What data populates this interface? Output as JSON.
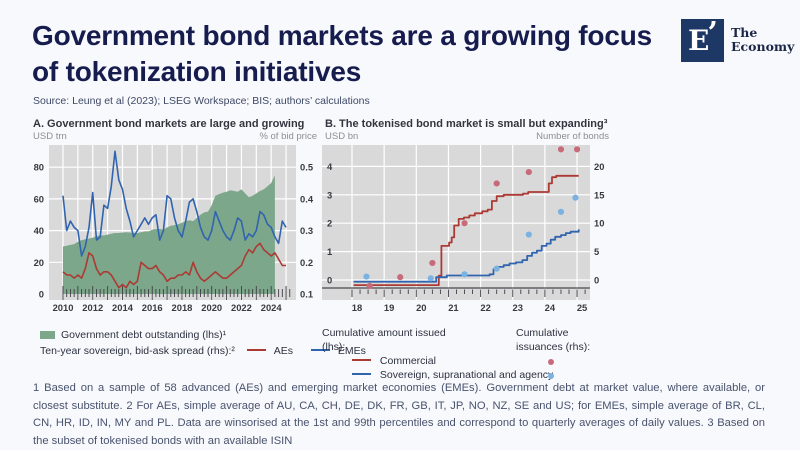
{
  "header": {
    "title": "Government bond markets are a growing focus of tokenization initiatives",
    "source": "Source: Leung et al (2023); LSEG Workspace; BIS; authors’ calculations"
  },
  "logo": {
    "mark": "E",
    "tick": "’",
    "name_top": "The",
    "name_bottom": "Economy"
  },
  "panel_a": {
    "title": "A. Government bond markets are large and growing",
    "unit_left": "USD trn",
    "unit_right": "% of bid price",
    "legend_area": "Government debt outstanding (lhs)¹",
    "legend_lines_label": "Ten-year sovereign, bid-ask spread (rhs):²",
    "legend_aes": "AEs",
    "legend_emes": "EMEs"
  },
  "panel_b": {
    "title": "B. The tokenised bond market is small but expanding³",
    "unit_left": "USD bn",
    "unit_right": "Number of bonds",
    "legend_left_heading": "Cumulative amount issued (lhs):",
    "legend_right_heading": "Cumulative issuances (rhs):",
    "legend_commercial": "Commercial",
    "legend_sovereign": "Sovereign, supranational and agency"
  },
  "footnote": "1 Based on a sample of 58 advanced (AEs) and emerging market economies (EMEs). Government debt at market value, where available, or closest substitute. 2 For AEs, simple average of AU, CA, CH, DE, DK, FR, GB, IT, JP, NO, NZ, SE and US; for EMEs, simple average of BR, CL, CN, HR, ID, IN, MY and PL. Data are winsorised at the 1st and 99th percentiles and correspond to quarterly averages of daily values. 3 Based on the subset of tokenised bonds with an available ISIN",
  "colors": {
    "accent_navy": "#171c4e",
    "logo_navy": "#1e3866",
    "plot_bg": "#d9d9d9",
    "grid": "#ffffff",
    "area_green": "#7ca78b",
    "line_red": "#ac3a34",
    "line_blue": "#3164ae",
    "dot_red": "#c76b7b",
    "dot_blue": "#7ab2e2",
    "tick_text": "#393942",
    "axis_dark": "#4a4a50"
  },
  "chart_data": [
    {
      "type": "area",
      "panel": "A",
      "title": "A. Government bond markets are large and growing",
      "xlabel": "",
      "ylabel_left": "USD trn",
      "ylabel_right": "% of bid price",
      "x_start": 2010,
      "x_step": 0.25,
      "x_tick_labels": [
        2010,
        2012,
        2014,
        2016,
        2018,
        2020,
        2022,
        2024
      ],
      "ylim_left": [
        0,
        94
      ],
      "yticks_left": [
        0,
        20,
        40,
        60,
        80
      ],
      "ylim_right": [
        0.1,
        0.57
      ],
      "yticks_right": [
        0.1,
        0.2,
        0.3,
        0.4,
        0.5
      ],
      "grid": true,
      "area": {
        "name": "Government debt outstanding (lhs)",
        "axis": "left",
        "color": "#7ca78b",
        "values": [
          30,
          30.5,
          31,
          31.5,
          33,
          34,
          34.5,
          35,
          35.5,
          36.5,
          37,
          37,
          37.5,
          38,
          38.5,
          38.5,
          38.8,
          39,
          38.8,
          38.5,
          38.5,
          39,
          39.5,
          39.5,
          40.5,
          41,
          41,
          40.5,
          42,
          43,
          43.5,
          44,
          45,
          46,
          46.5,
          46,
          48,
          50,
          51.5,
          52,
          56,
          62,
          63,
          64,
          64.5,
          65.5,
          65,
          64.5,
          66,
          63.5,
          61,
          62,
          63.5,
          65,
          66,
          68,
          70,
          75
        ]
      },
      "series": [
        {
          "name": "AEs",
          "axis": "right",
          "color": "#ac3a34",
          "values": [
            0.17,
            0.16,
            0.16,
            0.15,
            0.16,
            0.15,
            0.18,
            0.23,
            0.22,
            0.18,
            0.16,
            0.17,
            0.17,
            0.16,
            0.14,
            0.12,
            0.13,
            0.12,
            0.14,
            0.13,
            0.14,
            0.2,
            0.19,
            0.18,
            0.18,
            0.19,
            0.17,
            0.16,
            0.14,
            0.15,
            0.15,
            0.16,
            0.16,
            0.17,
            0.16,
            0.2,
            0.17,
            0.15,
            0.14,
            0.15,
            0.16,
            0.17,
            0.16,
            0.15,
            0.15,
            0.16,
            0.17,
            0.18,
            0.19,
            0.22,
            0.24,
            0.23,
            0.25,
            0.26,
            0.24,
            0.23,
            0.22,
            0.23,
            0.21,
            0.19,
            0.19
          ]
        },
        {
          "name": "EMEs",
          "axis": "right",
          "color": "#3164ae",
          "values": [
            0.41,
            0.3,
            0.33,
            0.31,
            0.3,
            0.22,
            0.25,
            0.31,
            0.42,
            0.27,
            0.28,
            0.38,
            0.37,
            0.44,
            0.55,
            0.46,
            0.43,
            0.37,
            0.33,
            0.28,
            0.3,
            0.32,
            0.34,
            0.32,
            0.34,
            0.35,
            0.27,
            0.3,
            0.41,
            0.4,
            0.34,
            0.3,
            0.28,
            0.33,
            0.39,
            0.4,
            0.36,
            0.31,
            0.28,
            0.27,
            0.3,
            0.36,
            0.33,
            0.3,
            0.28,
            0.27,
            0.3,
            0.34,
            0.33,
            0.27,
            0.29,
            0.28,
            0.3,
            0.36,
            0.35,
            0.32,
            0.31,
            0.28,
            0.26,
            0.33,
            0.31
          ]
        }
      ]
    },
    {
      "type": "line",
      "panel": "B",
      "title": "B. The tokenised bond market is small but expanding",
      "xlabel": "",
      "ylabel_left": "USD bn",
      "ylabel_right": "Number of bonds",
      "x_ticks": [
        18,
        19,
        20,
        21,
        22,
        23,
        24,
        25
      ],
      "ylim_left": [
        -0.5,
        4.75
      ],
      "yticks_left": [
        0,
        1,
        2,
        3,
        4
      ],
      "ylim_right": [
        -2.5,
        23.75
      ],
      "yticks_right": [
        0,
        5,
        10,
        15,
        20
      ],
      "grid": true,
      "series": [
        {
          "name": "Commercial",
          "axis": "left",
          "color": "#ac3a34",
          "step": true,
          "points": [
            [
              18.05,
              -0.18
            ],
            [
              20.62,
              -0.18
            ],
            [
              20.7,
              0.15
            ],
            [
              20.78,
              1.2
            ],
            [
              21.02,
              1.32
            ],
            [
              21.1,
              1.5
            ],
            [
              21.18,
              1.92
            ],
            [
              21.32,
              2.15
            ],
            [
              21.48,
              2.2
            ],
            [
              21.65,
              2.27
            ],
            [
              21.82,
              2.35
            ],
            [
              22.05,
              2.42
            ],
            [
              22.22,
              2.48
            ],
            [
              22.35,
              2.78
            ],
            [
              22.5,
              2.95
            ],
            [
              22.72,
              3.0
            ],
            [
              23.32,
              3.04
            ],
            [
              23.48,
              3.1
            ],
            [
              24.0,
              3.1
            ],
            [
              24.12,
              3.4
            ],
            [
              24.22,
              3.62
            ],
            [
              24.35,
              3.67
            ],
            [
              25.05,
              3.67
            ]
          ]
        },
        {
          "name": "Sovereign, supranational and agency",
          "axis": "left",
          "color": "#3164ae",
          "step": true,
          "points": [
            [
              18.05,
              -0.06
            ],
            [
              20.52,
              -0.06
            ],
            [
              20.62,
              0.1
            ],
            [
              20.95,
              0.16
            ],
            [
              22.28,
              0.2
            ],
            [
              22.4,
              0.38
            ],
            [
              22.55,
              0.46
            ],
            [
              22.72,
              0.52
            ],
            [
              22.9,
              0.58
            ],
            [
              23.1,
              0.62
            ],
            [
              23.3,
              0.7
            ],
            [
              23.45,
              0.85
            ],
            [
              23.6,
              0.96
            ],
            [
              23.75,
              1.03
            ],
            [
              23.9,
              1.2
            ],
            [
              24.05,
              1.28
            ],
            [
              24.18,
              1.42
            ],
            [
              24.32,
              1.52
            ],
            [
              24.5,
              1.58
            ],
            [
              24.65,
              1.65
            ],
            [
              24.8,
              1.7
            ],
            [
              25.05,
              1.78
            ]
          ]
        }
      ],
      "scatter": [
        {
          "name": "Commercial cumulative issuances",
          "axis": "right",
          "color": "#c76b7b",
          "points": [
            [
              18.55,
              0,
              6
            ],
            [
              19.5,
              0.5
            ],
            [
              20.5,
              3
            ],
            [
              21.5,
              10
            ],
            [
              22.5,
              17
            ],
            [
              23.5,
              19
            ],
            [
              24.5,
              23
            ],
            [
              25.0,
              23
            ]
          ]
        },
        {
          "name": "Sovereign, supranational and agency cumulative issuances",
          "axis": "right",
          "color": "#7ab2e2",
          "points": [
            [
              18.45,
              0.6
            ],
            [
              20.45,
              0.3
            ],
            [
              21.5,
              1
            ],
            [
              22.5,
              2
            ],
            [
              23.5,
              8
            ],
            [
              24.5,
              12
            ],
            [
              24.95,
              14.5
            ]
          ]
        }
      ]
    }
  ]
}
